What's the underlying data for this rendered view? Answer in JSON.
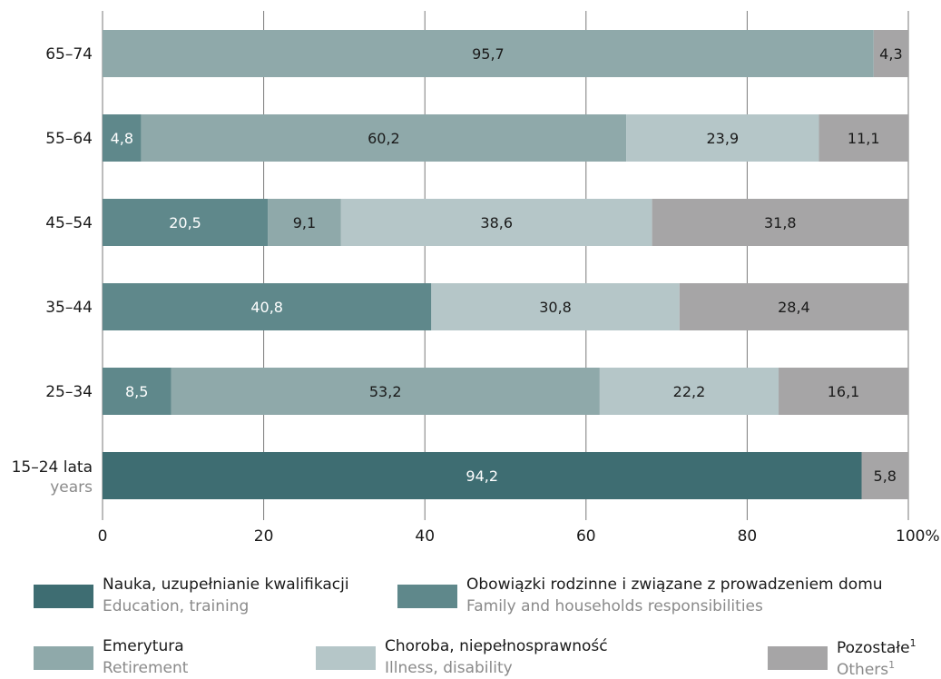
{
  "chart_data": {
    "type": "bar",
    "orientation": "horizontal",
    "stacked": true,
    "categories": [
      "65–74",
      "55–64",
      "45–54",
      "35–44",
      "25–34",
      "15–24 lata"
    ],
    "category_sublabel": {
      "15–24 lata": "years"
    },
    "series": [
      {
        "name": "Nauka, uzupełnianie kwalifikacji",
        "name_en": "Education, training",
        "color": "#3e6d72",
        "values": [
          null,
          null,
          null,
          null,
          null,
          94.2
        ]
      },
      {
        "name": "Obowiązki rodzinne i związane z prowadzeniem domu",
        "name_en": "Family and households responsibilities",
        "color": "#5f888b",
        "values": [
          null,
          4.8,
          20.5,
          40.8,
          8.5,
          null
        ]
      },
      {
        "name": "Emerytura",
        "name_en": "Retirement",
        "color": "#8fa9aa",
        "values": [
          95.7,
          60.2,
          9.1,
          null,
          53.2,
          null
        ]
      },
      {
        "name": "Choroba, niepełnosprawność",
        "name_en": "Illness, disability",
        "color": "#b5c6c8",
        "values": [
          null,
          23.9,
          38.6,
          30.8,
          22.2,
          null
        ]
      },
      {
        "name": "Pozostałe",
        "name_en": "Others",
        "color": "#a6a5a6",
        "footnote": "1",
        "values": [
          4.3,
          11.1,
          31.8,
          28.4,
          16.1,
          5.8
        ]
      }
    ],
    "bar_labels": [
      [
        "95,7",
        "4,3"
      ],
      [
        "4,8",
        "60,2",
        "23,9",
        "11,1"
      ],
      [
        "20,5",
        "9,1",
        "38,6",
        "31,8"
      ],
      [
        "40,8",
        "30,8",
        "28,4"
      ],
      [
        "8,5",
        "53,2",
        "22,2",
        "16,1"
      ],
      [
        "94,2",
        "5,8"
      ]
    ],
    "xlim": [
      0,
      100
    ],
    "xticks": [
      "0",
      "20",
      "40",
      "60",
      "80",
      "100%"
    ],
    "grid": true
  },
  "legend": [
    {
      "pl": "Nauka, uzupełnianie kwalifikacji",
      "en": "Education, training",
      "sup": ""
    },
    {
      "pl": "Obowiązki rodzinne i związane z prowadzeniem domu",
      "en": "Family and households responsibilities",
      "sup": ""
    },
    {
      "pl": "Emerytura",
      "en": "Retirement",
      "sup": ""
    },
    {
      "pl": "Choroba, niepełnosprawność",
      "en": "Illness, disability",
      "sup": ""
    },
    {
      "pl": "Pozostałe",
      "en": "Others",
      "sup": "1"
    }
  ]
}
